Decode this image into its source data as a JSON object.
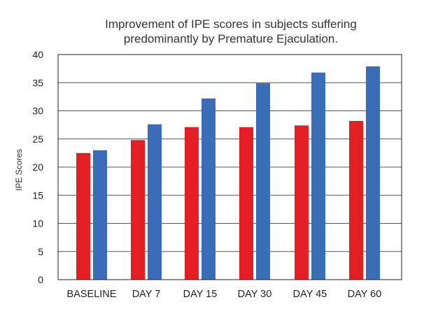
{
  "chart_data": {
    "type": "bar",
    "title_lines": [
      "Improvement of IPE scores in subjects suffering",
      "predominantly by Premature Ejaculation."
    ],
    "xlabel": "",
    "ylabel": "IPE Scores",
    "categories": [
      "BASELINE",
      "DAY 7",
      "DAY 15",
      "DAY 30",
      "DAY 45",
      "DAY 60"
    ],
    "series": [
      {
        "values": [
          22.5,
          24.8,
          27.1,
          27.1,
          27.4,
          28.2
        ],
        "color": "#e31e24"
      },
      {
        "values": [
          23.0,
          27.6,
          32.2,
          34.9,
          36.8,
          37.9
        ],
        "color": "#3b6cb7"
      }
    ],
    "ylim": [
      0,
      40
    ],
    "yticks": [
      0,
      5,
      10,
      15,
      20,
      25,
      30,
      35,
      40
    ],
    "grid": true,
    "legend": "none"
  }
}
